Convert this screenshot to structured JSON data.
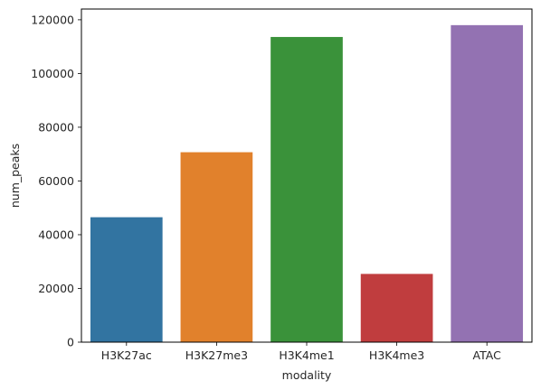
{
  "chart_data": {
    "type": "bar",
    "title": "",
    "xlabel": "modality",
    "ylabel": "num_peaks",
    "categories": [
      "H3K27ac",
      "H3K27me3",
      "H3K4me1",
      "H3K4me3",
      "ATAC"
    ],
    "values": [
      46500,
      70700,
      113600,
      25400,
      118000
    ],
    "colors": [
      "#3274a1",
      "#e1812c",
      "#3a923a",
      "#c03d3e",
      "#9372b2"
    ],
    "ylim": [
      0,
      124000
    ],
    "yticks": [
      0,
      20000,
      40000,
      60000,
      80000,
      100000,
      120000
    ],
    "ytick_labels": [
      "0",
      "20000",
      "40000",
      "60000",
      "80000",
      "100000",
      "120000"
    ],
    "grid": false,
    "legend": "none"
  }
}
